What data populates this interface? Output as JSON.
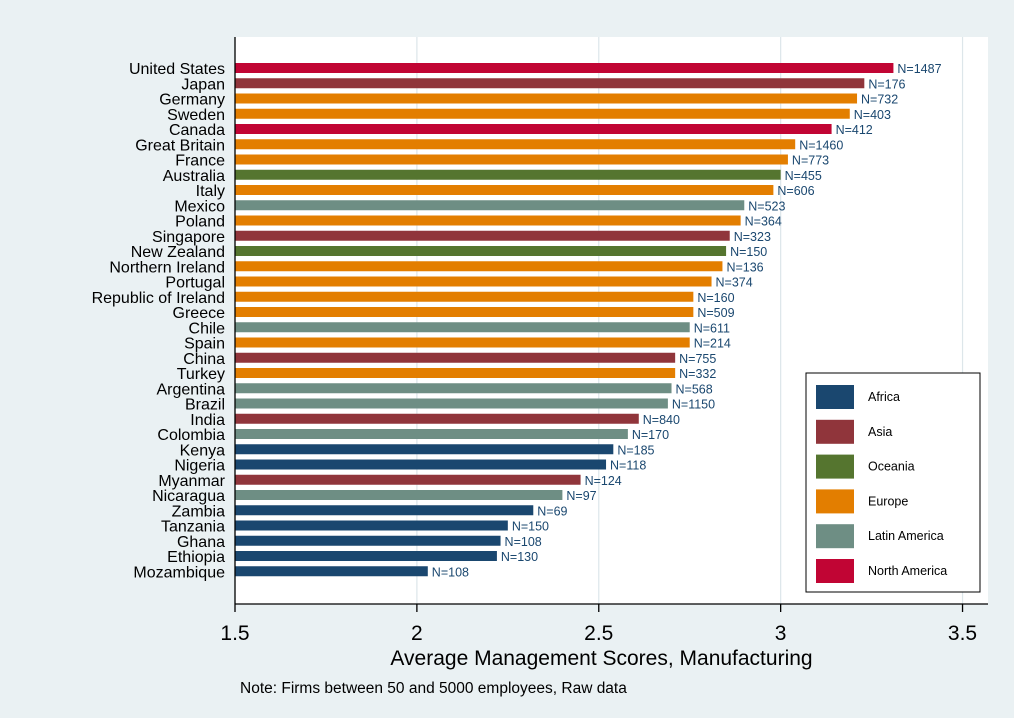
{
  "colors": {
    "Africa": "#1a476f",
    "Asia": "#90353b",
    "Oceania": "#55752f",
    "Europe": "#e37e00",
    "Latin America": "#6e8e84",
    "North America": "#c10534",
    "plot_background": "#ffffff",
    "outer_background": "#eaf1f3",
    "gridline": "#dde6ea"
  },
  "chart_data": {
    "type": "bar",
    "orientation": "horizontal",
    "xlabel": "Average Management Scores, Manufacturing",
    "note": "Note: Firms between 50 and 5000 employees, Raw data",
    "xlim": [
      1.5,
      3.57
    ],
    "xticks": [
      "1.5",
      "2",
      "2.5",
      "3",
      "3.5"
    ],
    "grid": true,
    "legend_position": "bottom-right",
    "legend": [
      "Africa",
      "Asia",
      "Oceania",
      "Europe",
      "Latin America",
      "North America"
    ],
    "bars": [
      {
        "country": "United States",
        "value": 3.31,
        "n": "N=1487",
        "region": "North America"
      },
      {
        "country": "Japan",
        "value": 3.23,
        "n": "N=176",
        "region": "Asia"
      },
      {
        "country": "Germany",
        "value": 3.21,
        "n": "N=732",
        "region": "Europe"
      },
      {
        "country": "Sweden",
        "value": 3.19,
        "n": "N=403",
        "region": "Europe"
      },
      {
        "country": "Canada",
        "value": 3.14,
        "n": "N=412",
        "region": "North America"
      },
      {
        "country": "Great Britain",
        "value": 3.04,
        "n": "N=1460",
        "region": "Europe"
      },
      {
        "country": "France",
        "value": 3.02,
        "n": "N=773",
        "region": "Europe"
      },
      {
        "country": "Australia",
        "value": 3.0,
        "n": "N=455",
        "region": "Oceania"
      },
      {
        "country": "Italy",
        "value": 2.98,
        "n": "N=606",
        "region": "Europe"
      },
      {
        "country": "Mexico",
        "value": 2.9,
        "n": "N=523",
        "region": "Latin America"
      },
      {
        "country": "Poland",
        "value": 2.89,
        "n": "N=364",
        "region": "Europe"
      },
      {
        "country": "Singapore",
        "value": 2.86,
        "n": "N=323",
        "region": "Asia"
      },
      {
        "country": "New Zealand",
        "value": 2.85,
        "n": "N=150",
        "region": "Oceania"
      },
      {
        "country": "Northern Ireland",
        "value": 2.84,
        "n": "N=136",
        "region": "Europe"
      },
      {
        "country": "Portugal",
        "value": 2.81,
        "n": "N=374",
        "region": "Europe"
      },
      {
        "country": "Republic of Ireland",
        "value": 2.76,
        "n": "N=160",
        "region": "Europe"
      },
      {
        "country": "Greece",
        "value": 2.76,
        "n": "N=509",
        "region": "Europe"
      },
      {
        "country": "Chile",
        "value": 2.75,
        "n": "N=611",
        "region": "Latin America"
      },
      {
        "country": "Spain",
        "value": 2.75,
        "n": "N=214",
        "region": "Europe"
      },
      {
        "country": "China",
        "value": 2.71,
        "n": "N=755",
        "region": "Asia"
      },
      {
        "country": "Turkey",
        "value": 2.71,
        "n": "N=332",
        "region": "Europe"
      },
      {
        "country": "Argentina",
        "value": 2.7,
        "n": "N=568",
        "region": "Latin America"
      },
      {
        "country": "Brazil",
        "value": 2.69,
        "n": "N=1150",
        "region": "Latin America"
      },
      {
        "country": "India",
        "value": 2.61,
        "n": "N=840",
        "region": "Asia"
      },
      {
        "country": "Colombia",
        "value": 2.58,
        "n": "N=170",
        "region": "Latin America"
      },
      {
        "country": "Kenya",
        "value": 2.54,
        "n": "N=185",
        "region": "Africa"
      },
      {
        "country": "Nigeria",
        "value": 2.52,
        "n": "N=118",
        "region": "Africa"
      },
      {
        "country": "Myanmar",
        "value": 2.45,
        "n": "N=124",
        "region": "Asia"
      },
      {
        "country": "Nicaragua",
        "value": 2.4,
        "n": "N=97",
        "region": "Latin America"
      },
      {
        "country": "Zambia",
        "value": 2.32,
        "n": "N=69",
        "region": "Africa"
      },
      {
        "country": "Tanzania",
        "value": 2.25,
        "n": "N=150",
        "region": "Africa"
      },
      {
        "country": "Ghana",
        "value": 2.23,
        "n": "N=108",
        "region": "Africa"
      },
      {
        "country": "Ethiopia",
        "value": 2.22,
        "n": "N=130",
        "region": "Africa"
      },
      {
        "country": "Mozambique",
        "value": 2.03,
        "n": "N=108",
        "region": "Africa"
      }
    ]
  }
}
